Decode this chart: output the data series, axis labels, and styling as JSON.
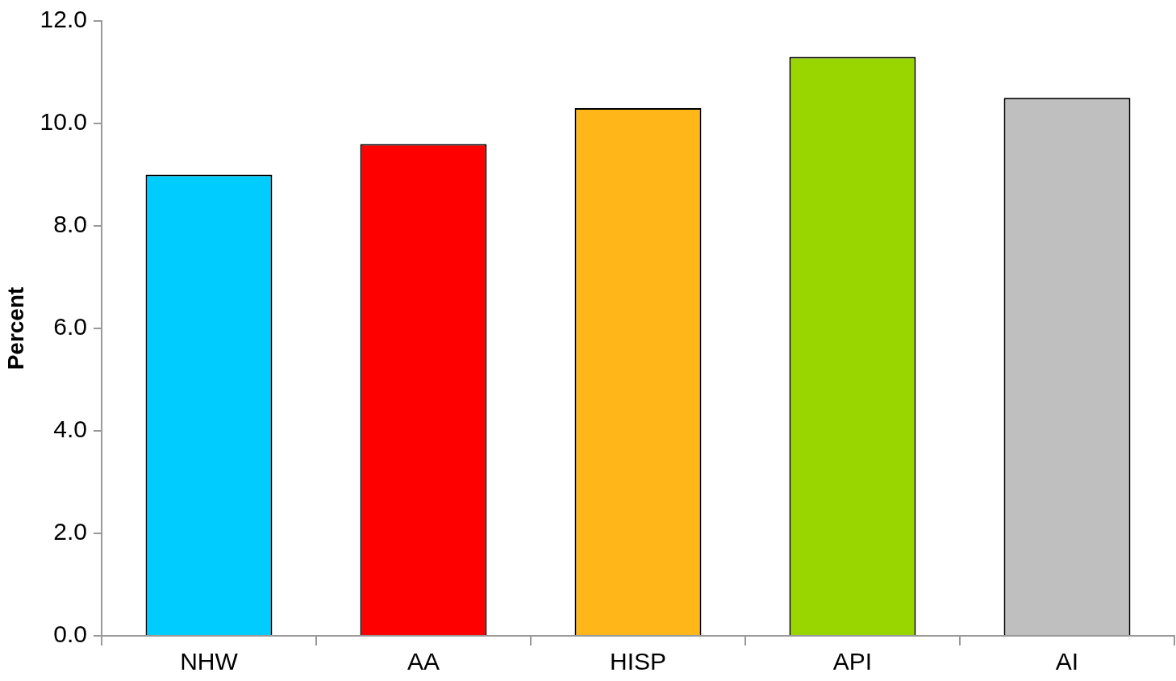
{
  "chart_data": {
    "type": "bar",
    "ylabel": "Percent",
    "categories": [
      "NHW",
      "AA",
      "HISP",
      "API",
      "AI"
    ],
    "values": [
      9.0,
      9.6,
      10.3,
      11.3,
      10.5
    ],
    "colors": [
      "#00ccff",
      "#ff0000",
      "#ffb619",
      "#99d600",
      "#bfbfbf"
    ],
    "ylim": [
      0,
      12
    ],
    "yticks": [
      {
        "value": 0,
        "label": "0.0"
      },
      {
        "value": 2,
        "label": "2.0"
      },
      {
        "value": 4,
        "label": "4.0"
      },
      {
        "value": 6,
        "label": "6.0"
      },
      {
        "value": 8,
        "label": "8.0"
      },
      {
        "value": 10,
        "label": "10.0"
      },
      {
        "value": 12,
        "label": "12.0"
      }
    ]
  }
}
